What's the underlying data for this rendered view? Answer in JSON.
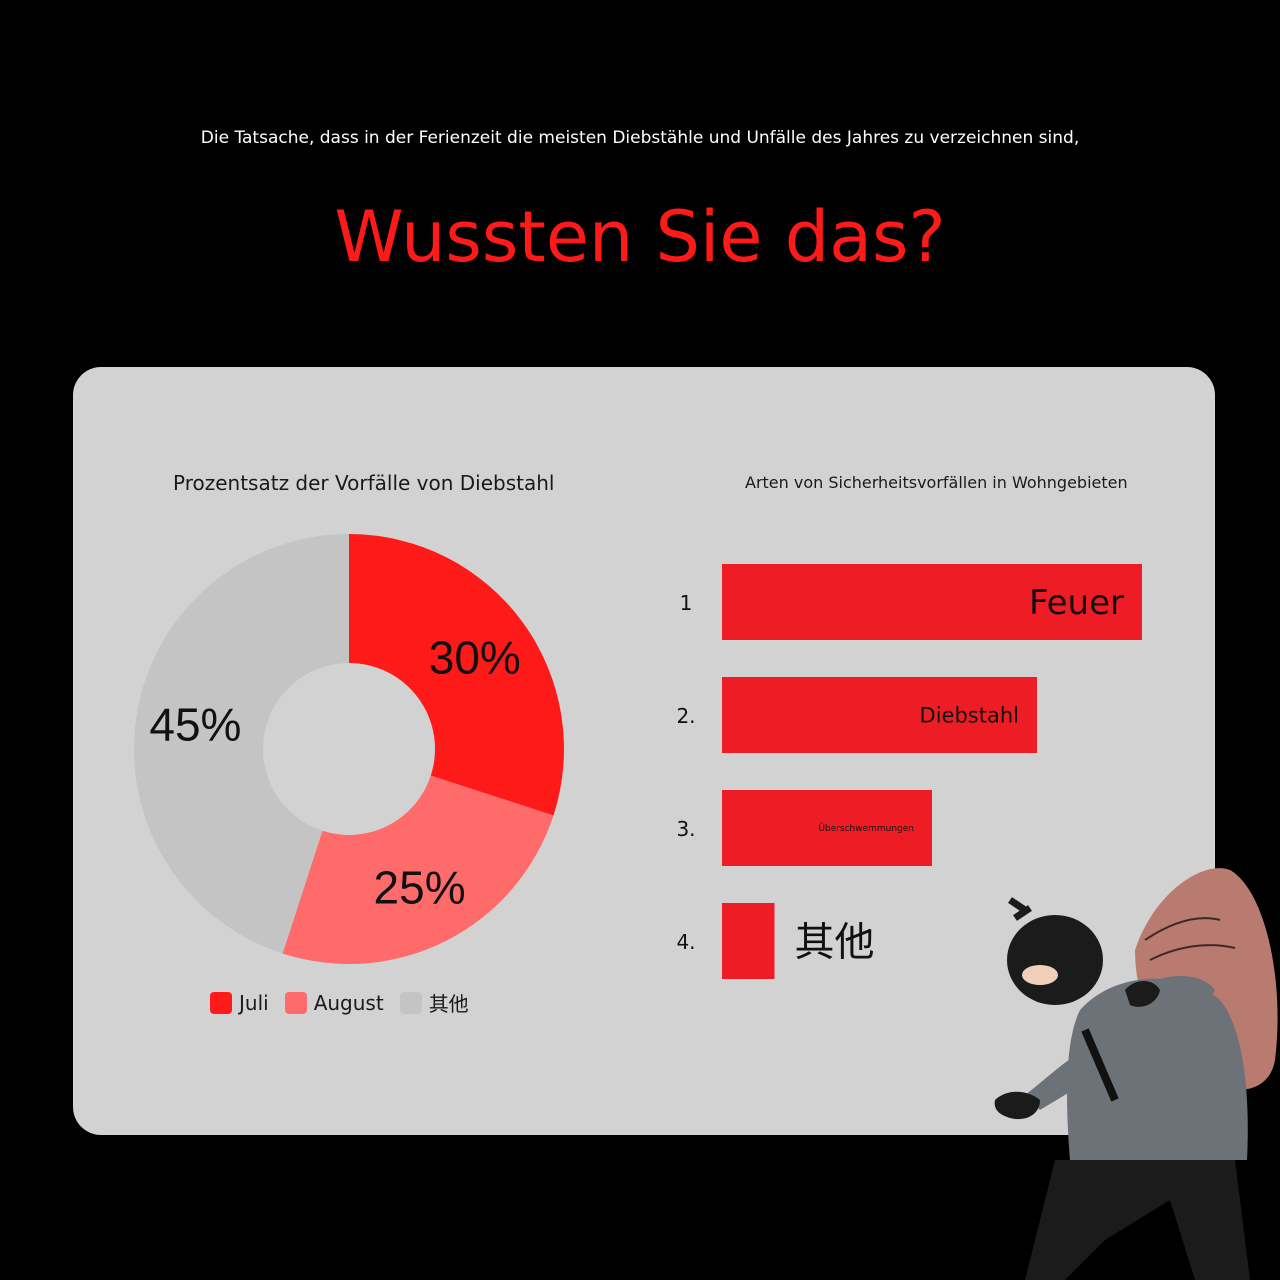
{
  "intro_text": "Die Tatsache, dass in der Ferienzeit die meisten Diebstähle und Unfälle des Jahres zu verzeichnen sind,",
  "headline": "Wussten Sie das?",
  "colors": {
    "headline": "#ff1a1a",
    "juli": "#ff1a1a",
    "august": "#ff6b6b",
    "other": "#c4c4c4",
    "bar": "#ee1c25",
    "panel": "#d3d2d3"
  },
  "chart_data": [
    {
      "type": "pie",
      "title": "Prozentsatz der Vorfälle von Diebstahl",
      "categories": [
        "Juli",
        "August",
        "其他"
      ],
      "values": [
        30,
        25,
        45
      ],
      "labels": [
        "30%",
        "25%",
        "45%"
      ],
      "legend": "bottom"
    },
    {
      "type": "bar",
      "title": "Arten von Sicherheitsvorfällen in Wohngebieten",
      "ranks": [
        "1",
        "2.",
        "3.",
        "4."
      ],
      "categories": [
        "Feuer",
        "Diebstahl",
        "Überschwemmungen",
        "其他"
      ],
      "values": [
        4,
        3,
        2,
        0.5
      ]
    }
  ]
}
